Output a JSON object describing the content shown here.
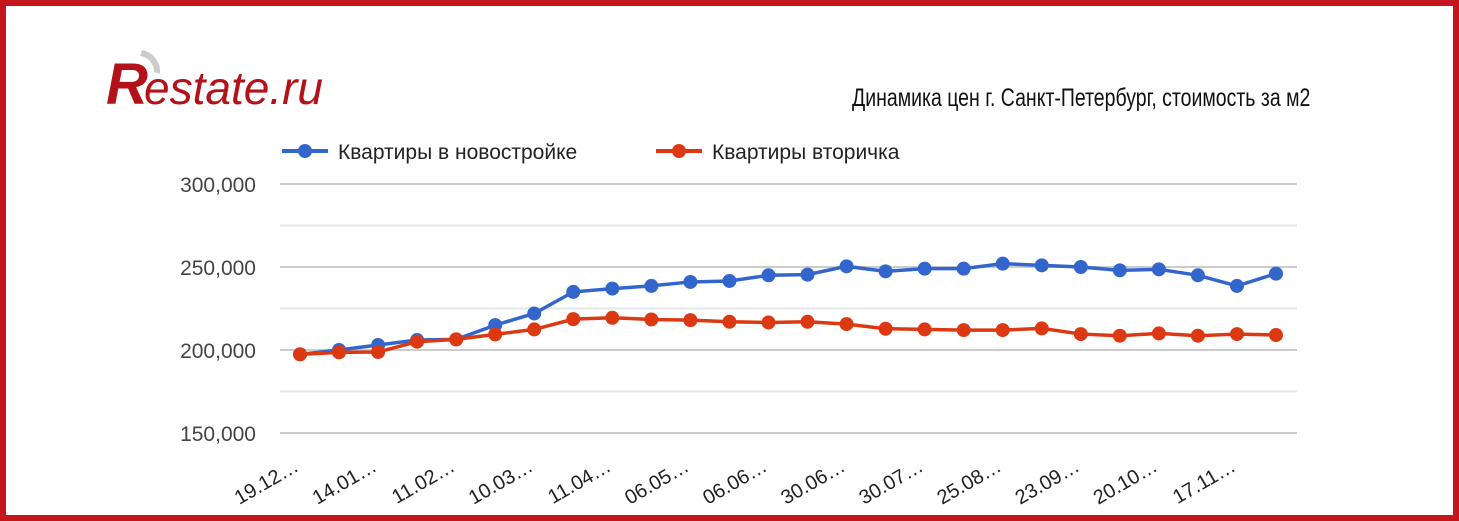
{
  "logo_text": "Restate.ru",
  "chart_data": {
    "type": "line",
    "title": "Динамика цен г. Санкт-Петербург, стоимость за м2",
    "xlabel": "",
    "ylabel": "",
    "ylim": [
      150000,
      300000
    ],
    "y_ticks": [
      150000,
      200000,
      250000,
      300000
    ],
    "y_tick_labels": [
      "150,000",
      "200,000",
      "250,000",
      "300,000"
    ],
    "grid": true,
    "gridline_step": 25000,
    "legend_position": "top",
    "x_tick_labels": [
      "19.12…",
      "14.01…",
      "11.02…",
      "10.03…",
      "11.04…",
      "06.05…",
      "06.06…",
      "30.06…",
      "30.07…",
      "25.08…",
      "23.09…",
      "20.10…",
      "17.11…"
    ],
    "series": [
      {
        "name": "Квартиры в новостройке",
        "color": "#3366cc",
        "values": [
          197400,
          200000,
          203000,
          206000,
          206400,
          215000,
          222000,
          235000,
          237000,
          238600,
          241000,
          241600,
          245000,
          245400,
          250400,
          247400,
          249000,
          249000,
          252000,
          251000,
          250000,
          248000,
          248600,
          245000,
          238600,
          246000
        ]
      },
      {
        "name": "Квартиры вторичка",
        "color": "#dc3912",
        "values": [
          197400,
          198600,
          198800,
          205000,
          206400,
          209400,
          212400,
          218600,
          219400,
          218400,
          218000,
          217000,
          216600,
          217000,
          215600,
          212800,
          212400,
          212000,
          212000,
          213000,
          209600,
          208600,
          210000,
          208600,
          209600,
          209000
        ]
      }
    ]
  },
  "colors": {
    "border": "#c4161c",
    "logo": "#b3121a"
  }
}
